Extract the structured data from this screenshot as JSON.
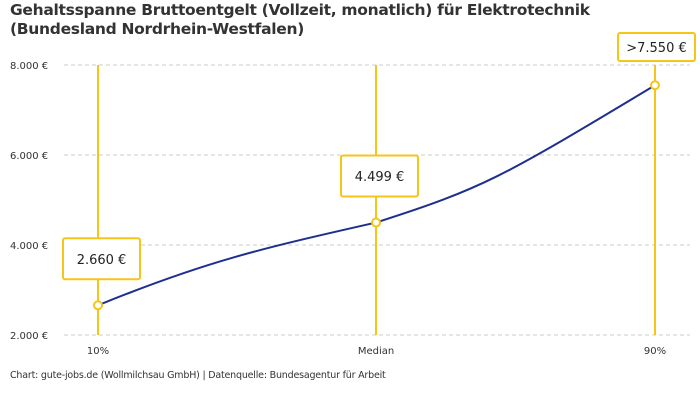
{
  "title": "Gehaltsspanne Bruttoentgelt (Vollzeit, monatlich) für Elektrotechnik (Bundesland Nordrhein-Westfalen)",
  "footer": "Chart: gute-jobs.de (Wollmilchsau GmbH) | Datenquelle: Bundesagentur für Arbeit",
  "chart_data": {
    "type": "line",
    "categories": [
      "10%",
      "Median",
      "90%"
    ],
    "values": [
      2660,
      4499,
      7550
    ],
    "data_labels": [
      "2.660 €",
      "4.499 €",
      ">7.550 €"
    ],
    "yticks": [
      2000,
      4000,
      6000,
      8000
    ],
    "ytick_labels": [
      "2.000 €",
      "4.000 €",
      "6.000 €",
      "8.000 €"
    ],
    "ylim": [
      2000,
      8000
    ],
    "grid": "horizontal dashed",
    "colors": {
      "line": "#1f2f8f",
      "marker": "#f5c518",
      "grid": "#cccccc"
    }
  }
}
